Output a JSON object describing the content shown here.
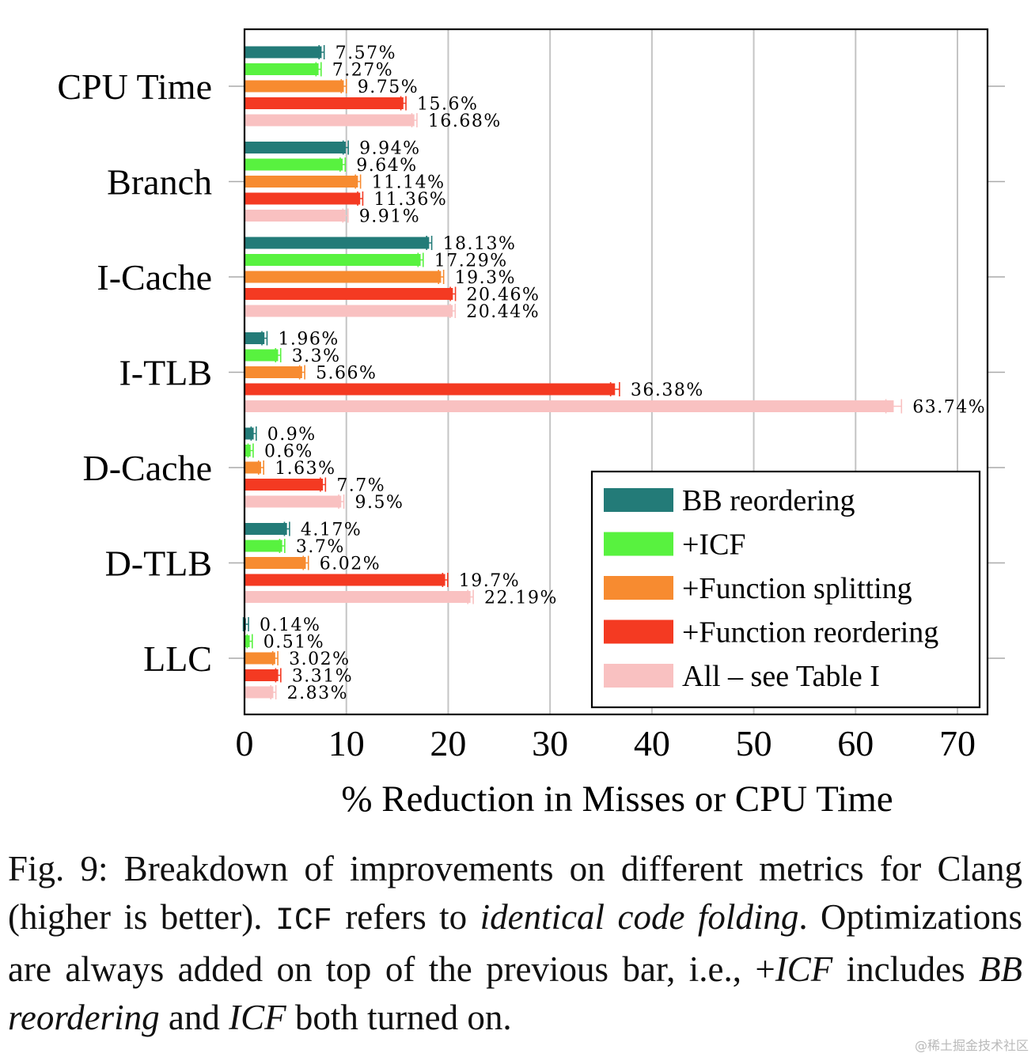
{
  "chart_data": {
    "type": "bar",
    "orientation": "horizontal",
    "title": "",
    "xlabel": "% Reduction in Misses or CPU Time",
    "ylabel": "",
    "xlim": [
      0,
      73
    ],
    "xticks": [
      0,
      10,
      20,
      30,
      40,
      50,
      60,
      70
    ],
    "grid": "vertical",
    "legend_position": "bottom-right",
    "categories": [
      "CPU Time",
      "Branch",
      "I-Cache",
      "I-TLB",
      "D-Cache",
      "D-TLB",
      "LLC"
    ],
    "series": [
      {
        "name": "BB reordering",
        "color": "#237b78",
        "values": [
          7.57,
          9.94,
          18.13,
          1.96,
          0.9,
          4.17,
          0.14
        ],
        "labels": [
          "7.57%",
          "9.94%",
          "18.13%",
          "1.96%",
          "0.9%",
          "4.17%",
          "0.14%"
        ]
      },
      {
        "name": "+ICF",
        "color": "#58f23f",
        "values": [
          7.27,
          9.64,
          17.29,
          3.3,
          0.6,
          3.7,
          0.51
        ],
        "labels": [
          "7.27%",
          "9.64%",
          "17.29%",
          "3.3%",
          "0.6%",
          "3.7%",
          "0.51%"
        ]
      },
      {
        "name": "+Function splitting",
        "color": "#f78b30",
        "values": [
          9.75,
          11.14,
          19.3,
          5.66,
          1.63,
          6.02,
          3.02
        ],
        "labels": [
          "9.75%",
          "11.14%",
          "19.3%",
          "5.66%",
          "1.63%",
          "6.02%",
          "3.02%"
        ]
      },
      {
        "name": "+Function reordering",
        "color": "#f43a22",
        "values": [
          15.6,
          11.36,
          20.46,
          36.38,
          7.7,
          19.7,
          3.31
        ],
        "labels": [
          "15.6%",
          "11.36%",
          "20.46%",
          "36.38%",
          "7.7%",
          "19.7%",
          "3.31%"
        ]
      },
      {
        "name": "All – see Table I",
        "color": "#f9c1c1",
        "values": [
          16.68,
          9.91,
          20.44,
          63.74,
          9.5,
          22.19,
          2.83
        ],
        "labels": [
          "16.68%",
          "9.91%",
          "20.44%",
          "63.74%",
          "9.5%",
          "22.19%",
          "2.83%"
        ]
      }
    ]
  },
  "caption": {
    "fig_label": "Fig. 9:",
    "text_1": " Breakdown of improvements on different metrics for Clang (higher is better). ",
    "code_1": "ICF",
    "text_2": " refers to ",
    "em_1": "identical code folding",
    "text_3": ". Optimizations are always added on top of the previous bar, i.e., +",
    "em_2": "ICF",
    "text_4": " includes ",
    "em_3": "BB reordering",
    "text_5": " and ",
    "em_4": "ICF",
    "text_6": " both turned on."
  },
  "watermark": "@稀土掘金技术社区"
}
